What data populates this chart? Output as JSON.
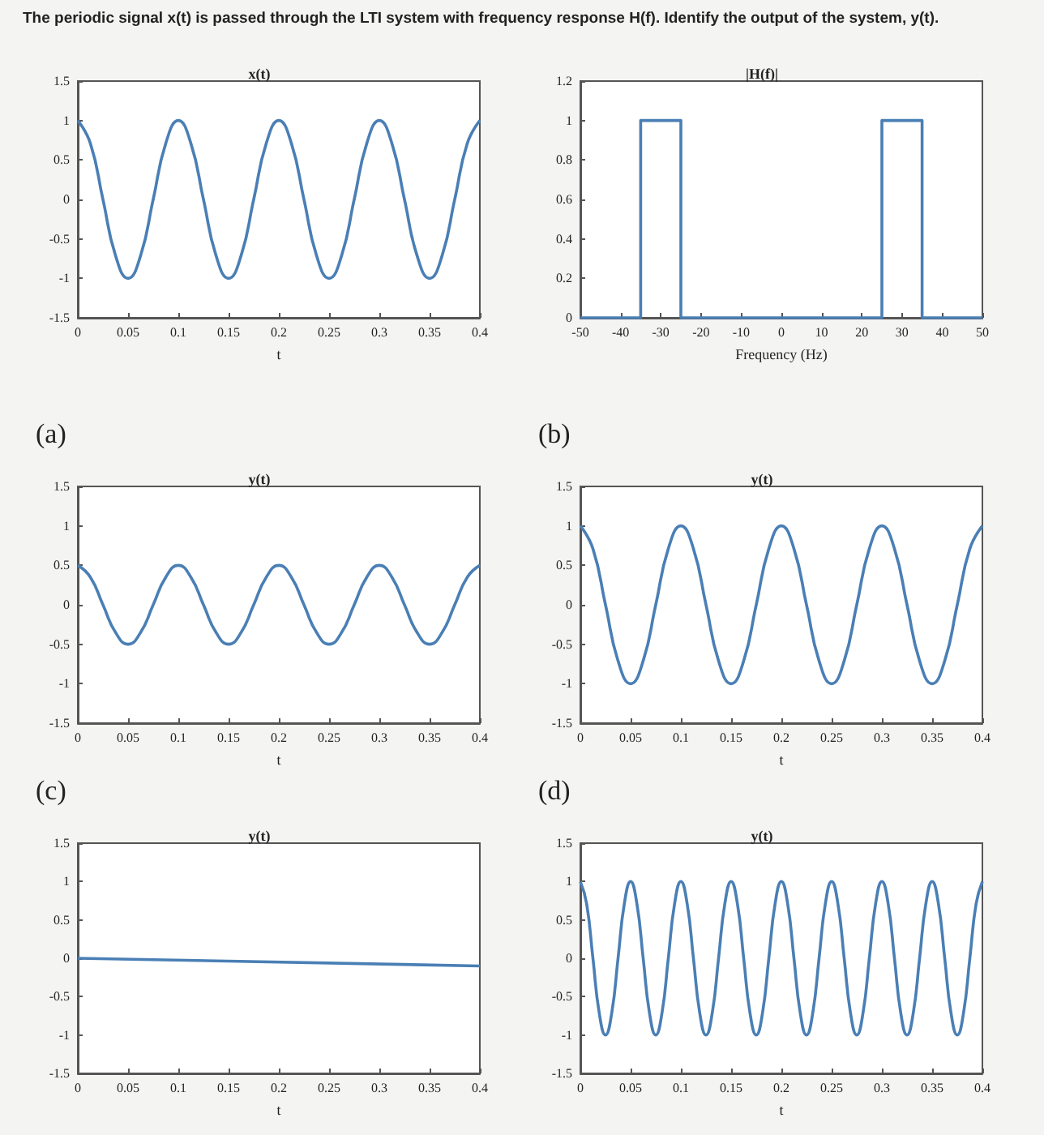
{
  "chart_data": [
    {
      "type": "line",
      "title": "x(t)",
      "xlabel": "t",
      "annotations": [
        "The periodic signal x(t) is passed through the LTI system with frequency response H(f). Identify the output of the system, y(t)."
      ],
      "color": "#4a7fb5",
      "marker": "none",
      "grid": false,
      "xlim": [
        0,
        0.4
      ],
      "ylim": [
        -1.5,
        1.5
      ],
      "xticks": [
        0,
        0.05,
        0.1,
        0.15,
        0.2,
        0.25,
        0.3,
        0.35,
        0.4
      ],
      "yticks": [
        -1.5,
        -1,
        -0.5,
        0,
        0.5,
        1,
        1.5
      ],
      "x": [
        0,
        0.0125,
        0.025,
        0.0375,
        0.05,
        0.0625,
        0.075,
        0.0875,
        0.1,
        0.1125,
        0.125,
        0.1375,
        0.15,
        0.1625,
        0.175,
        0.1875,
        0.2,
        0.2125,
        0.225,
        0.2375,
        0.25,
        0.2625,
        0.275,
        0.2875,
        0.3,
        0.3125,
        0.325,
        0.3375,
        0.35,
        0.3625,
        0.375,
        0.3875,
        0.4
      ],
      "values": [
        1,
        0.71,
        0,
        -0.71,
        -1,
        -0.71,
        0,
        0.71,
        1,
        0.71,
        0,
        -0.71,
        -1,
        -0.71,
        0,
        0.71,
        1,
        0.71,
        0,
        -0.71,
        -1,
        -0.71,
        0,
        0.71,
        1,
        0.71,
        0,
        -0.71,
        -1,
        -0.71,
        0,
        0.71,
        1
      ]
    },
    {
      "type": "step",
      "title": "|H(f)|",
      "xlabel": "Frequency (Hz)",
      "color": "#4a7fb5",
      "marker": "none",
      "grid": false,
      "xlim": [
        -50,
        50
      ],
      "ylim": [
        0,
        1.2
      ],
      "xticks": [
        -50,
        -40,
        -30,
        -20,
        -10,
        0,
        10,
        20,
        30,
        40,
        50
      ],
      "yticks": [
        0,
        0.2,
        0.4,
        0.6,
        0.8,
        1,
        1.2
      ],
      "x": [
        -50,
        -35,
        -25,
        25,
        35,
        50
      ],
      "values": [
        0,
        1,
        0,
        1,
        0,
        0
      ]
    },
    {
      "type": "line",
      "title": "y(t)",
      "xlabel": "t",
      "annotations": [
        "(a)"
      ],
      "color": "#4a7fb5",
      "marker": "none",
      "grid": false,
      "xlim": [
        0,
        0.4
      ],
      "ylim": [
        -1.5,
        1.5
      ],
      "xticks": [
        0,
        0.05,
        0.1,
        0.15,
        0.2,
        0.25,
        0.3,
        0.35,
        0.4
      ],
      "yticks": [
        -1.5,
        -1,
        -0.5,
        0,
        0.5,
        1,
        1.5
      ],
      "x": [
        0,
        0.0125,
        0.025,
        0.0375,
        0.05,
        0.0625,
        0.075,
        0.0875,
        0.1,
        0.1125,
        0.125,
        0.1375,
        0.15,
        0.1625,
        0.175,
        0.1875,
        0.2,
        0.2125,
        0.225,
        0.2375,
        0.25,
        0.2625,
        0.275,
        0.2875,
        0.3,
        0.3125,
        0.325,
        0.3375,
        0.35,
        0.3625,
        0.375,
        0.3875,
        0.4
      ],
      "values": [
        0.5,
        0.35,
        0,
        -0.35,
        -0.5,
        -0.35,
        0,
        0.35,
        0.5,
        0.35,
        0,
        -0.35,
        -0.5,
        -0.35,
        0,
        0.35,
        0.5,
        0.35,
        0,
        -0.35,
        -0.5,
        -0.35,
        0,
        0.35,
        0.5,
        0.35,
        0,
        -0.35,
        -0.5,
        -0.35,
        0,
        0.35,
        0.5
      ]
    },
    {
      "type": "line",
      "title": "y(t)",
      "xlabel": "t",
      "annotations": [
        "(b)"
      ],
      "color": "#4a7fb5",
      "marker": "none",
      "grid": false,
      "xlim": [
        0,
        0.4
      ],
      "ylim": [
        -1.5,
        1.5
      ],
      "xticks": [
        0,
        0.05,
        0.1,
        0.15,
        0.2,
        0.25,
        0.3,
        0.35,
        0.4
      ],
      "yticks": [
        -1.5,
        -1,
        -0.5,
        0,
        0.5,
        1,
        1.5
      ],
      "x": [
        0,
        0.0125,
        0.025,
        0.0375,
        0.05,
        0.0625,
        0.075,
        0.0875,
        0.1,
        0.1125,
        0.125,
        0.1375,
        0.15,
        0.1625,
        0.175,
        0.1875,
        0.2,
        0.2125,
        0.225,
        0.2375,
        0.25,
        0.2625,
        0.275,
        0.2875,
        0.3,
        0.3125,
        0.325,
        0.3375,
        0.35,
        0.3625,
        0.375,
        0.3875,
        0.4
      ],
      "values": [
        1,
        0.71,
        0,
        -0.71,
        -1,
        -0.71,
        0,
        0.71,
        1,
        0.71,
        0,
        -0.71,
        -1,
        -0.71,
        0,
        0.71,
        1,
        0.71,
        0,
        -0.71,
        -1,
        -0.71,
        0,
        0.71,
        1,
        0.71,
        0,
        -0.71,
        -1,
        -0.71,
        0,
        0.71,
        1
      ]
    },
    {
      "type": "line",
      "title": "y(t)",
      "xlabel": "t",
      "annotations": [
        "(c)"
      ],
      "color": "#4a7fb5",
      "marker": "none",
      "grid": false,
      "xlim": [
        0,
        0.4
      ],
      "ylim": [
        -1.5,
        1.5
      ],
      "xticks": [
        0,
        0.05,
        0.1,
        0.15,
        0.2,
        0.25,
        0.3,
        0.35,
        0.4
      ],
      "yticks": [
        -1.5,
        -1,
        -0.5,
        0,
        0.5,
        1,
        1.5
      ],
      "x": [
        0,
        0.4
      ],
      "values": [
        0,
        -0.1
      ]
    },
    {
      "type": "line",
      "title": "y(t)",
      "xlabel": "t",
      "annotations": [
        "(d)"
      ],
      "color": "#4a7fb5",
      "marker": "none",
      "grid": false,
      "xlim": [
        0,
        0.4
      ],
      "ylim": [
        -1.5,
        1.5
      ],
      "xticks": [
        0,
        0.05,
        0.1,
        0.15,
        0.2,
        0.25,
        0.3,
        0.35,
        0.4
      ],
      "yticks": [
        -1.5,
        -1,
        -0.5,
        0,
        0.5,
        1,
        1.5
      ],
      "x": [
        0,
        0.00625,
        0.0125,
        0.01875,
        0.025,
        0.03125,
        0.0375,
        0.04375,
        0.05,
        0.05625,
        0.0625,
        0.06875,
        0.075,
        0.08125,
        0.0875,
        0.09375,
        0.1,
        0.10625,
        0.1125,
        0.11875,
        0.125,
        0.13125,
        0.1375,
        0.14375,
        0.15,
        0.15625,
        0.1625,
        0.16875,
        0.175,
        0.18125,
        0.1875,
        0.19375,
        0.2,
        0.20625,
        0.2125,
        0.21875,
        0.225,
        0.23125,
        0.2375,
        0.24375,
        0.25,
        0.25625,
        0.2625,
        0.26875,
        0.275,
        0.28125,
        0.2875,
        0.29375,
        0.3,
        0.30625,
        0.3125,
        0.31875,
        0.325,
        0.33125,
        0.3375,
        0.34375,
        0.35,
        0.35625,
        0.3625,
        0.36875,
        0.375,
        0.38125,
        0.3875,
        0.39375,
        0.4
      ],
      "values": [
        1,
        0.71,
        0,
        -0.71,
        -1,
        -0.71,
        0,
        0.71,
        1,
        0.71,
        0,
        -0.71,
        -1,
        -0.71,
        0,
        0.71,
        1,
        0.71,
        0,
        -0.71,
        -1,
        -0.71,
        0,
        0.71,
        1,
        0.71,
        0,
        -0.71,
        -1,
        -0.71,
        0,
        0.71,
        1,
        0.71,
        0,
        -0.71,
        -1,
        -0.71,
        0,
        0.71,
        1,
        0.71,
        0,
        -0.71,
        -1,
        -0.71,
        0,
        0.71,
        1,
        0.71,
        0,
        -0.71,
        -1,
        -0.71,
        0,
        0.71,
        1,
        0.71,
        0,
        -0.71,
        -1,
        -0.71,
        0,
        0.71,
        1
      ]
    }
  ]
}
